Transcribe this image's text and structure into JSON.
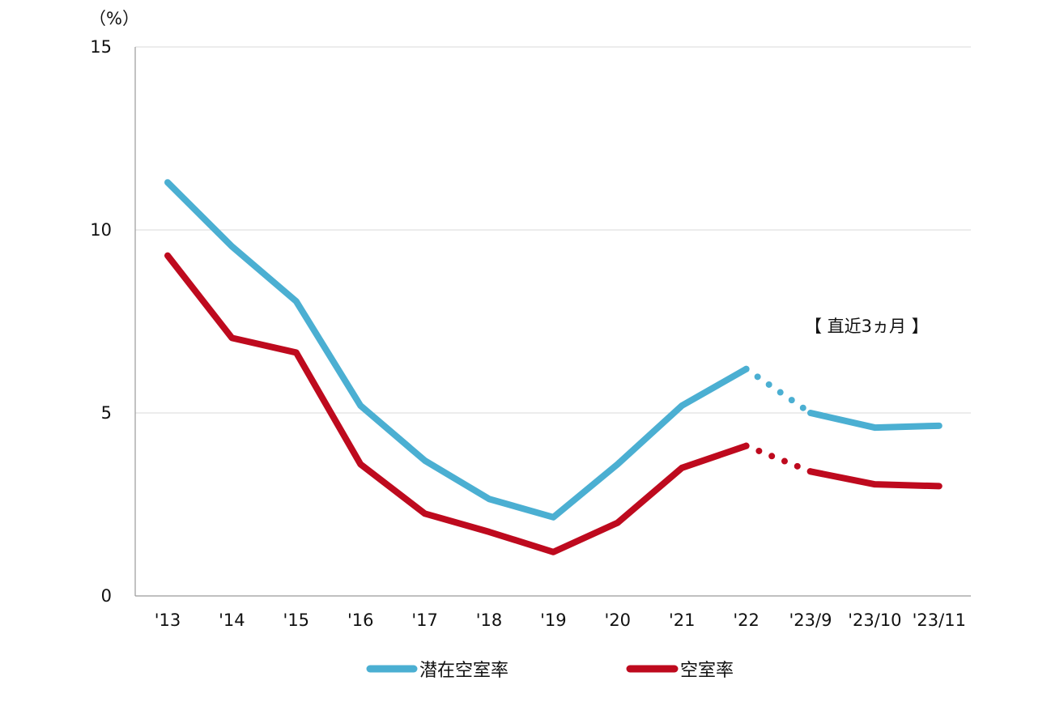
{
  "chart_data": {
    "type": "line",
    "unit_label": "（%）",
    "annotation": "【 直近3ヵ月 】",
    "categories": [
      "'13",
      "'14",
      "'15",
      "'16",
      "'17",
      "'18",
      "'19",
      "'20",
      "'21",
      "'22",
      "'23/9",
      "'23/10",
      "'23/11"
    ],
    "ylim": [
      0,
      15
    ],
    "yticks": [
      0,
      5,
      10,
      15
    ],
    "grid": true,
    "legend_position": "bottom",
    "dotted_segment": {
      "from_index": 9,
      "to_index": 10
    },
    "series": [
      {
        "name": "潜在空室率",
        "color": "#4BAFD2",
        "values": [
          11.3,
          9.55,
          8.05,
          5.2,
          3.7,
          2.65,
          2.15,
          3.6,
          5.2,
          6.2,
          5.0,
          4.6,
          4.65
        ]
      },
      {
        "name": "空室率",
        "color": "#BE0A1E",
        "values": [
          9.3,
          7.05,
          6.65,
          3.6,
          2.25,
          1.75,
          1.2,
          2.0,
          3.5,
          4.1,
          3.4,
          3.05,
          3.0
        ]
      }
    ]
  }
}
